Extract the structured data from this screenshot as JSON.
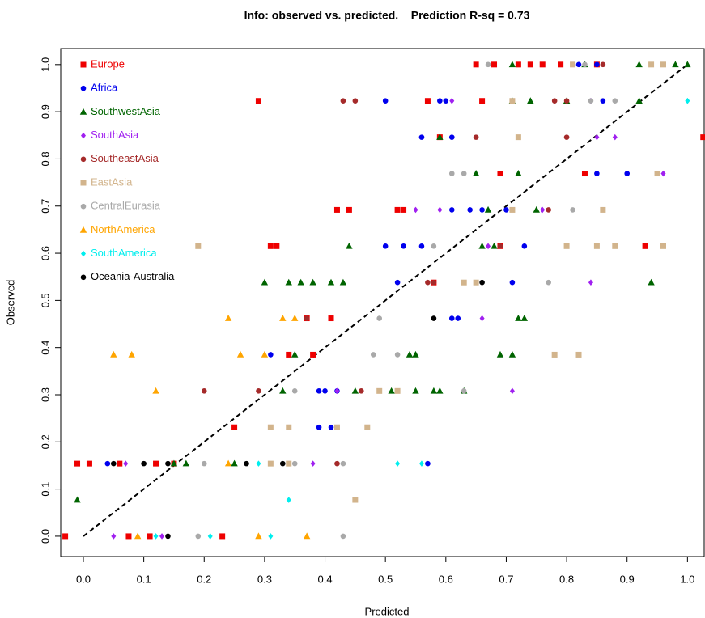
{
  "chart_data": {
    "type": "scatter",
    "title": "Info: observed vs. predicted.    Prediction R-sq = 0.73",
    "x_label": "Predicted",
    "y_label": "Observed",
    "xlim": [
      -0.0375,
      1.029
    ],
    "ylim": [
      -0.043,
      1.034
    ],
    "xticks": [
      {
        "value": 0,
        "label": "0.0"
      },
      0.1,
      0.2,
      0.3,
      0.4,
      0.5,
      0.6,
      0.7,
      0.8,
      0.9,
      {
        "value": 1,
        "label": "1.0"
      }
    ],
    "yticks": [
      {
        "value": 0,
        "label": "0.0"
      },
      0.1,
      0.2,
      0.3,
      0.4,
      0.5,
      0.6,
      0.7,
      0.8,
      0.9,
      {
        "value": 1,
        "label": "1.0"
      }
    ],
    "legend": "top-left",
    "diagonal": {
      "x": [
        0,
        1
      ],
      "y": [
        0,
        1
      ],
      "color": "#000000"
    },
    "series": [
      {
        "name": "Europe",
        "color": "#ee0000",
        "marker": "square",
        "x": [
          -0.03,
          0.075,
          0.11,
          0.23,
          -0.01,
          0.01,
          0.06,
          0.12,
          0.15,
          0.25,
          0.34,
          0.38,
          0.37,
          0.41,
          0.58,
          0.31,
          0.32,
          0.69,
          0.93,
          0.42,
          0.44,
          0.52,
          0.53,
          0.69,
          0.83,
          0.59,
          1.026,
          0.29,
          0.57,
          0.66,
          0.65,
          0.68,
          0.72,
          0.74,
          0.76,
          0.79,
          0.85
        ],
        "y": [
          0,
          0,
          0,
          0,
          0.154,
          0.154,
          0.154,
          0.154,
          0.154,
          0.231,
          0.385,
          0.385,
          0.462,
          0.462,
          0.538,
          0.615,
          0.615,
          0.615,
          0.615,
          0.692,
          0.692,
          0.692,
          0.692,
          0.769,
          0.769,
          0.846,
          0.846,
          0.923,
          0.923,
          0.923,
          1,
          1,
          1,
          1,
          1,
          1,
          1
        ]
      },
      {
        "name": "Africa",
        "color": "#0000ee",
        "marker": "circle",
        "x": [
          0.57,
          0.04,
          0.39,
          0.41,
          0.39,
          0.4,
          0.42,
          0.31,
          0.61,
          0.62,
          0.52,
          0.71,
          0.5,
          0.53,
          0.56,
          0.73,
          0.61,
          0.64,
          0.66,
          0.7,
          0.85,
          0.9,
          0.56,
          0.61,
          0.5,
          0.59,
          0.6,
          0.86,
          0.82,
          0.85
        ],
        "y": [
          0.154,
          0.154,
          0.231,
          0.231,
          0.308,
          0.308,
          0.308,
          0.385,
          0.462,
          0.462,
          0.538,
          0.538,
          0.615,
          0.615,
          0.615,
          0.615,
          0.692,
          0.692,
          0.692,
          0.692,
          0.769,
          0.769,
          0.846,
          0.846,
          0.923,
          0.923,
          0.923,
          0.923,
          1,
          1
        ]
      },
      {
        "name": "SouthwestAsia",
        "color": "#006400",
        "marker": "triangle",
        "x": [
          -0.01,
          0.15,
          0.17,
          0.25,
          0.33,
          0.45,
          0.51,
          0.55,
          0.58,
          0.59,
          0.63,
          0.35,
          0.54,
          0.55,
          0.69,
          0.71,
          0.72,
          0.73,
          0.3,
          0.34,
          0.36,
          0.38,
          0.41,
          0.43,
          0.94,
          0.44,
          0.66,
          0.68,
          0.67,
          0.75,
          0.65,
          0.72,
          0.59,
          0.71,
          0.74,
          0.8,
          0.92,
          0.71,
          0.83,
          0.92,
          0.98,
          1.0
        ],
        "y": [
          0.077,
          0.154,
          0.154,
          0.154,
          0.308,
          0.308,
          0.308,
          0.308,
          0.308,
          0.308,
          0.308,
          0.385,
          0.385,
          0.385,
          0.385,
          0.385,
          0.462,
          0.462,
          0.538,
          0.538,
          0.538,
          0.538,
          0.538,
          0.538,
          0.538,
          0.615,
          0.615,
          0.615,
          0.692,
          0.692,
          0.769,
          0.769,
          0.846,
          0.923,
          0.923,
          0.923,
          0.923,
          1,
          1,
          1,
          1,
          1
        ]
      },
      {
        "name": "SouthAsia",
        "color": "#a020f0",
        "marker": "diamond",
        "x": [
          0.05,
          0.13,
          0.07,
          0.38,
          0.42,
          0.71,
          0.66,
          0.84,
          0.67,
          0.55,
          0.59,
          0.76,
          0.96,
          0.85,
          0.88,
          0.61,
          0.84
        ],
        "y": [
          0,
          0,
          0.154,
          0.154,
          0.308,
          0.308,
          0.462,
          0.538,
          0.615,
          0.692,
          0.692,
          0.692,
          0.769,
          0.846,
          0.846,
          0.923,
          0.923
        ]
      },
      {
        "name": "SoutheastAsia",
        "color": "#a52a2a",
        "marker": "circle",
        "x": [
          0.42,
          0.2,
          0.29,
          0.46,
          0.37,
          0.57,
          0.58,
          0.69,
          0.77,
          0.65,
          0.8,
          0.43,
          0.45,
          0.78,
          0.8,
          0.86
        ],
        "y": [
          0.154,
          0.308,
          0.308,
          0.308,
          0.462,
          0.538,
          0.538,
          0.615,
          0.692,
          0.846,
          0.846,
          0.923,
          0.923,
          0.923,
          0.923,
          1
        ]
      },
      {
        "name": "EastAsia",
        "color": "#d2b48c",
        "marker": "square",
        "x": [
          0.45,
          0.31,
          0.34,
          0.31,
          0.34,
          0.42,
          0.47,
          0.49,
          0.52,
          0.78,
          0.82,
          0.63,
          0.65,
          0.19,
          0.8,
          0.85,
          0.88,
          0.96,
          0.71,
          0.86,
          0.95,
          0.72,
          0.71,
          0.81,
          0.94,
          0.96
        ],
        "y": [
          0.077,
          0.154,
          0.154,
          0.231,
          0.231,
          0.231,
          0.231,
          0.308,
          0.308,
          0.385,
          0.385,
          0.538,
          0.538,
          0.615,
          0.615,
          0.615,
          0.615,
          0.615,
          0.692,
          0.692,
          0.769,
          0.846,
          0.923,
          1,
          1,
          1
        ]
      },
      {
        "name": "CentralEurasia",
        "color": "#a9a9a9",
        "marker": "circle",
        "x": [
          0.19,
          0.43,
          0.2,
          0.35,
          0.43,
          0.35,
          0.63,
          0.48,
          0.52,
          0.49,
          0.58,
          0.77,
          0.58,
          0.81,
          0.61,
          0.63,
          0.84,
          0.88,
          0.67,
          0.83
        ],
        "y": [
          0,
          0,
          0.154,
          0.154,
          0.154,
          0.308,
          0.308,
          0.385,
          0.385,
          0.462,
          0.462,
          0.538,
          0.615,
          0.692,
          0.769,
          0.769,
          0.923,
          0.923,
          1,
          1
        ]
      },
      {
        "name": "NorthAmerica",
        "color": "#ffa500",
        "marker": "triangle",
        "x": [
          0.09,
          0.29,
          0.37,
          0.24,
          0.12,
          0.05,
          0.08,
          0.26,
          0.3,
          0.24,
          0.33,
          0.35
        ],
        "y": [
          0,
          0,
          0,
          0.154,
          0.308,
          0.385,
          0.385,
          0.385,
          0.385,
          0.462,
          0.462,
          0.462
        ]
      },
      {
        "name": "SouthAmerica",
        "color": "#00eeee",
        "marker": "diamond",
        "x": [
          0.12,
          0.21,
          0.31,
          0.34,
          0.29,
          0.52,
          0.56,
          1.0
        ],
        "y": [
          0,
          0,
          0,
          0.077,
          0.154,
          0.154,
          0.154,
          0.923
        ]
      },
      {
        "name": "Oceania-Australia",
        "color": "#000000",
        "marker": "circle",
        "x": [
          0.14,
          0.05,
          0.1,
          0.14,
          0.27,
          0.33,
          0.58,
          0.66
        ],
        "y": [
          0,
          0.154,
          0.154,
          0.154,
          0.154,
          0.154,
          0.462,
          0.538
        ]
      }
    ]
  }
}
